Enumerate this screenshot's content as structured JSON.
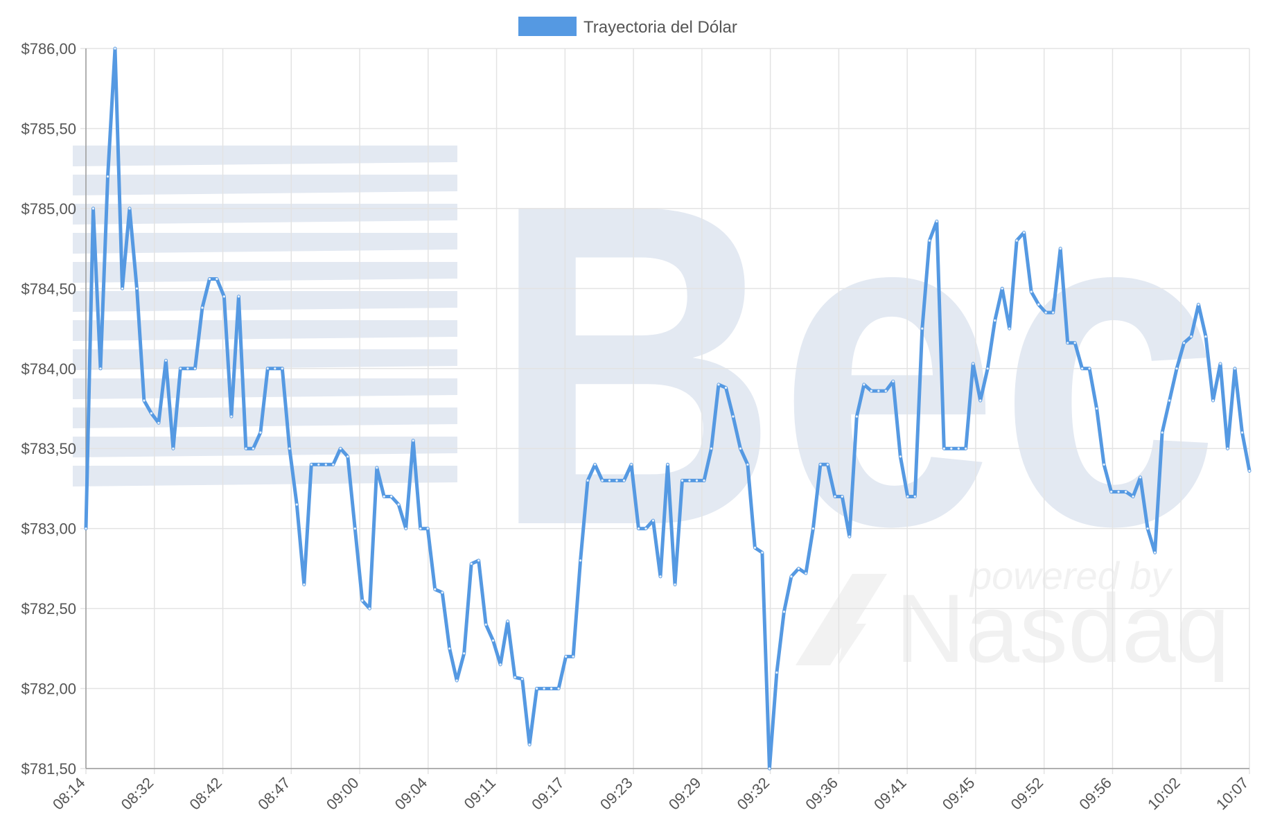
{
  "chart_data": {
    "type": "line",
    "legend": {
      "label": "Trayectoria del Dólar",
      "position": "top-center"
    },
    "colors": {
      "line": "#5599e2",
      "legend_swatch": "#5599e2"
    },
    "grid": true,
    "ylim": [
      781.5,
      786.0
    ],
    "y_ticks": [
      "$786,00",
      "$785,50",
      "$785,00",
      "$784,50",
      "$784,00",
      "$783,50",
      "$783,00",
      "$782,50",
      "$782,00",
      "$781,50"
    ],
    "x_ticks": [
      "08:14",
      "08:32",
      "08:42",
      "08:47",
      "09:00",
      "09:04",
      "09:11",
      "09:17",
      "09:23",
      "09:29",
      "09:32",
      "09:36",
      "09:41",
      "09:45",
      "09:52",
      "09:56",
      "10:02",
      "10:07"
    ],
    "series": [
      {
        "name": "Trayectoria del Dólar",
        "values": [
          783.0,
          785.0,
          784.0,
          785.2,
          786.0,
          784.5,
          785.0,
          784.5,
          783.8,
          783.72,
          783.66,
          784.05,
          783.5,
          784.0,
          784.0,
          784.0,
          784.38,
          784.56,
          784.56,
          784.45,
          783.7,
          784.45,
          783.5,
          783.5,
          783.6,
          784.0,
          784.0,
          784.0,
          783.5,
          783.15,
          782.65,
          783.4,
          783.4,
          783.4,
          783.4,
          783.5,
          783.45,
          783.0,
          782.55,
          782.5,
          783.38,
          783.2,
          783.2,
          783.15,
          783.0,
          783.55,
          783.0,
          783.0,
          782.62,
          782.6,
          782.25,
          782.05,
          782.22,
          782.78,
          782.8,
          782.4,
          782.3,
          782.15,
          782.42,
          782.07,
          782.06,
          781.65,
          782.0,
          782.0,
          782.0,
          782.0,
          782.2,
          782.2,
          782.8,
          783.3,
          783.4,
          783.3,
          783.3,
          783.3,
          783.3,
          783.4,
          783.0,
          783.0,
          783.05,
          782.7,
          783.4,
          782.65,
          783.3,
          783.3,
          783.3,
          783.3,
          783.5,
          783.9,
          783.88,
          783.7,
          783.5,
          783.4,
          782.88,
          782.85,
          781.5,
          782.1,
          782.48,
          782.7,
          782.75,
          782.72,
          783.0,
          783.4,
          783.4,
          783.2,
          783.2,
          782.95,
          783.7,
          783.9,
          783.86,
          783.86,
          783.86,
          783.92,
          783.45,
          783.2,
          783.2,
          784.25,
          784.8,
          784.92,
          783.5,
          783.5,
          783.5,
          783.5,
          784.03,
          783.8,
          784.0,
          784.3,
          784.5,
          784.25,
          784.8,
          784.85,
          784.48,
          784.4,
          784.35,
          784.35,
          784.75,
          784.16,
          784.16,
          784.0,
          784.0,
          783.75,
          783.4,
          783.23,
          783.23,
          783.23,
          783.2,
          783.32,
          783.0,
          782.85,
          783.6,
          783.8,
          784.0,
          784.16,
          784.2,
          784.4,
          784.2,
          783.8,
          784.03,
          783.5,
          784.0,
          783.6,
          783.36
        ]
      }
    ]
  },
  "watermark": {
    "brand": "Bec",
    "powered_by": "powered by",
    "provider": "Nasdaq"
  }
}
